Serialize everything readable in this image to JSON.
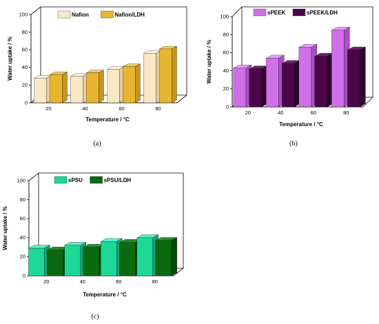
{
  "chart_data": [
    {
      "type": "bar",
      "caption": "(a)",
      "categories": [
        "20",
        "40",
        "60",
        "80"
      ],
      "series": [
        {
          "name": "Nafion",
          "values": [
            28,
            30,
            38,
            56
          ],
          "colors": {
            "front": "#FAE8C4",
            "top": "#FEF5E4",
            "side": "#E6CFA0"
          }
        },
        {
          "name": "Nafion/LDH",
          "values": [
            32,
            34,
            41,
            61
          ],
          "colors": {
            "front": "#E8B530",
            "top": "#F2CC60",
            "side": "#C8961C"
          }
        }
      ],
      "xlabel": "Temperature / °C",
      "ylabel": "Water uptake / %",
      "ylim": [
        0,
        100
      ],
      "yticks": [
        0,
        20,
        40,
        60,
        80,
        100
      ],
      "legend": "top-left"
    },
    {
      "type": "bar",
      "caption": "(b)",
      "categories": [
        "20",
        "40",
        "60",
        "80"
      ],
      "series": [
        {
          "name": "sPEEK",
          "values": [
            43,
            54,
            66,
            85
          ],
          "colors": {
            "front": "#D070E8",
            "top": "#E6A0F4",
            "side": "#A850C4"
          }
        },
        {
          "name": "sPEEK/LDH",
          "values": [
            42,
            48,
            56,
            63
          ],
          "colors": {
            "front": "#4A0848",
            "top": "#6A2068",
            "side": "#300430"
          }
        }
      ],
      "xlabel": "Temperature / °C",
      "ylabel": "Water uptake / %",
      "ylim": [
        0,
        100
      ],
      "yticks": [
        0,
        20,
        40,
        60,
        80,
        100
      ],
      "legend": "top-left"
    },
    {
      "type": "bar",
      "caption": "(c)",
      "categories": [
        "20",
        "40",
        "60",
        "80"
      ],
      "series": [
        {
          "name": "sPSU",
          "values": [
            29,
            32,
            36,
            40
          ],
          "colors": {
            "front": "#1ED898",
            "top": "#60F0C0",
            "side": "#10A878"
          }
        },
        {
          "name": "sPSU/LDH",
          "values": [
            27,
            30,
            35,
            37
          ],
          "colors": {
            "front": "#0A6A10",
            "top": "#2A8A30",
            "side": "#064808"
          }
        }
      ],
      "xlabel": "Temperature / °C",
      "ylabel": "Water uptake / %",
      "ylim": [
        0,
        100
      ],
      "yticks": [
        0,
        20,
        40,
        60,
        80,
        100
      ],
      "legend": "top-left"
    }
  ]
}
